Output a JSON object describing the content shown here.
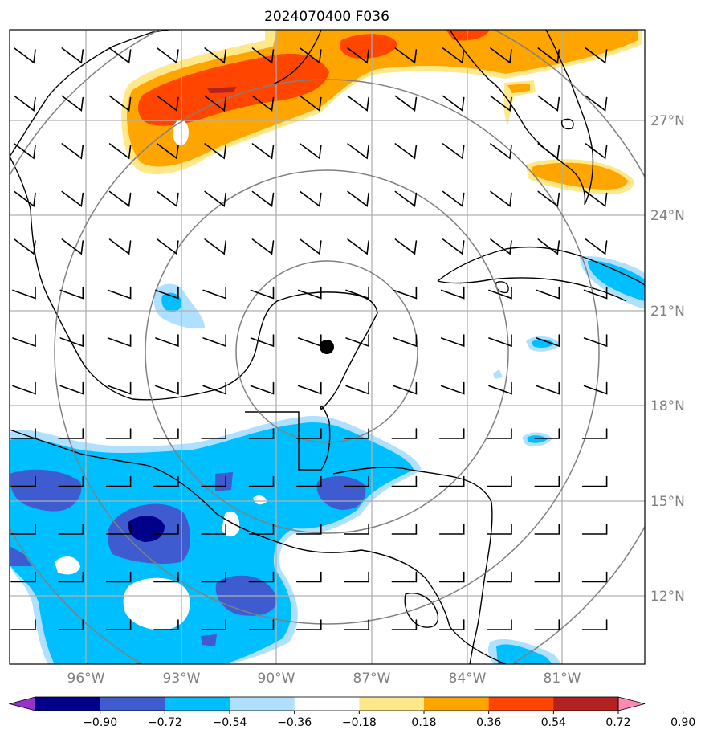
{
  "title": "2024070400 F036",
  "lat_labels": [
    "27°N",
    "24°N",
    "21°N",
    "18°N",
    "15°N",
    "12°N"
  ],
  "lon_labels": [
    "96°W",
    "93°W",
    "90°W",
    "87°W",
    "84°W",
    "81°W"
  ],
  "colorbar": {
    "ticks": [
      "−0.90",
      "−0.72",
      "−0.54",
      "−0.36",
      "−0.18",
      "0.18",
      "0.36",
      "0.54",
      "0.72",
      "0.90"
    ],
    "colors": [
      "#9932cc",
      "#00008b",
      "#3e5bd0",
      "#00bfff",
      "#b0e0ff",
      "#ffffff",
      "#ffe88a",
      "#ffa500",
      "#ff4500",
      "#b22222",
      "#ff88b0"
    ]
  },
  "map": {
    "extent": {
      "lon_min": -98.4,
      "lon_max": -78.4,
      "lat_min": 9.9,
      "lat_max": 29.8
    },
    "center_marker": {
      "lon": -88.4,
      "lat": 19.8
    },
    "range_rings": 4,
    "wind_barbs": "uniform grid of easterly/southeasterly wind barbs"
  }
}
